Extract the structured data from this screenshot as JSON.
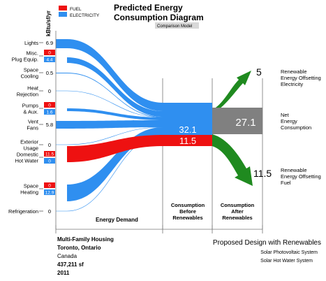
{
  "header": {
    "unit": "kBtu/sf/yr",
    "legend": [
      {
        "label": "FUEL",
        "color": "#ee1111"
      },
      {
        "label": "ELECTRICITY",
        "color": "#2f8ff0"
      }
    ],
    "title_line1": "Predicted Energy",
    "title_line2": "Consumption Diagram",
    "badge": "Comparison Model"
  },
  "chart_data": {
    "type": "sankey",
    "categories": [
      {
        "label_lines": [
          "Lights"
        ],
        "fuel": null,
        "electricity": "6.9",
        "single": "6.9"
      },
      {
        "label_lines": [
          "Misc.",
          "Plug Equip."
        ],
        "fuel": "0",
        "electricity": "4.4"
      },
      {
        "label_lines": [
          "Space",
          "Cooling"
        ],
        "single": "0.5"
      },
      {
        "label_lines": [
          "Heat",
          "Rejection"
        ],
        "single": "0"
      },
      {
        "label_lines": [
          "Pumps",
          "& Aux."
        ],
        "fuel": "0",
        "electricity": "1.6"
      },
      {
        "label_lines": [
          "Vent",
          "Fans"
        ],
        "single": "5.8"
      },
      {
        "label_lines": [
          "Exterior",
          "Usage"
        ],
        "single": "0"
      },
      {
        "label_lines": [
          "Domestic",
          "Hot Water"
        ],
        "fuel": "11.5",
        "electricity": "0"
      },
      {
        "label_lines": [
          "Space",
          "Heating"
        ],
        "fuel": "0",
        "electricity": "12.9"
      },
      {
        "label_lines": [
          "Refrigeration"
        ],
        "single": "0"
      }
    ],
    "consumption_before": {
      "electricity": "32.1",
      "fuel": "11.5"
    },
    "net_consumption": "27.1",
    "offset_electricity": "5",
    "offset_fuel": "11.5",
    "right_labels": {
      "electricity": [
        "Renewable",
        "Energy Offsetting",
        "Electricity"
      ],
      "net": [
        "Net",
        "Energy",
        "Consumption"
      ],
      "fuel": [
        "Renewable",
        "Energy Offsetting",
        "Fuel"
      ]
    },
    "section_labels": {
      "demand": "Energy Demand",
      "before": [
        "Consumption",
        "Before",
        "Renewables"
      ],
      "after": [
        "Consumption",
        "After",
        "Renewables"
      ]
    },
    "colors": {
      "electricity": "#2f8ff0",
      "fuel": "#ee1111",
      "net": "#808080",
      "renewable": "#1f8a1f"
    }
  },
  "project": {
    "name": "Multi-Family Housing",
    "city": "Toronto, Ontario",
    "country": "Canada",
    "area": "437,211 sf",
    "year": "2011"
  },
  "design": {
    "title": "Proposed Design with Renewables",
    "systems": [
      "Solar Photovoltaic System",
      "Solar Hot Water System"
    ]
  }
}
